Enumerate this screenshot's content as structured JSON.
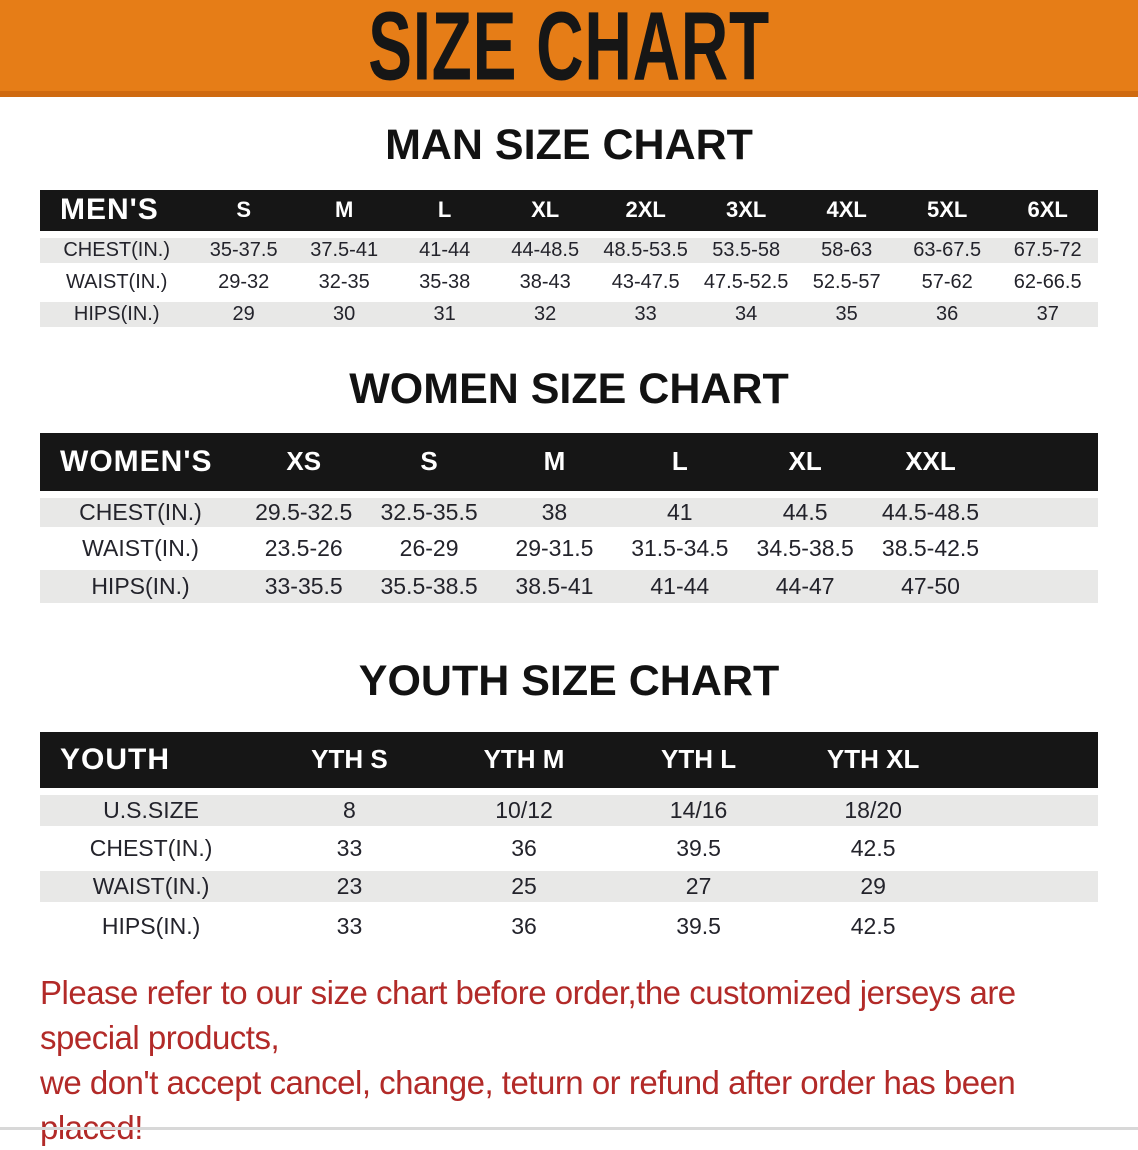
{
  "banner": {
    "title": "SIZE CHART"
  },
  "sections": [
    {
      "id": "men",
      "title": "MAN SIZE CHART",
      "header_label": "MEN'S",
      "columns": [
        "S",
        "M",
        "L",
        "XL",
        "2XL",
        "3XL",
        "4XL",
        "5XL",
        "6XL"
      ],
      "rows": [
        {
          "label": "CHEST(IN.)",
          "values": [
            "35-37.5",
            "37.5-41",
            "41-44",
            "44-48.5",
            "48.5-53.5",
            "53.5-58",
            "58-63",
            "63-67.5",
            "67.5-72"
          ]
        },
        {
          "label": "WAIST(IN.)",
          "values": [
            "29-32",
            "32-35",
            "35-38",
            "38-43",
            "43-47.5",
            "47.5-52.5",
            "52.5-57",
            "57-62",
            "62-66.5"
          ]
        },
        {
          "label": "HIPS(IN.)",
          "values": [
            "29",
            "30",
            "31",
            "32",
            "33",
            "34",
            "35",
            "36",
            "37"
          ]
        }
      ]
    },
    {
      "id": "women",
      "title": "WOMEN SIZE CHART",
      "header_label": "WOMEN'S",
      "columns": [
        "XS",
        "S",
        "M",
        "L",
        "XL",
        "XXL"
      ],
      "rows": [
        {
          "label": "CHEST(IN.)",
          "values": [
            "29.5-32.5",
            "32.5-35.5",
            "38",
            "41",
            "44.5",
            "44.5-48.5"
          ]
        },
        {
          "label": "WAIST(IN.)",
          "values": [
            "23.5-26",
            "26-29",
            "29-31.5",
            "31.5-34.5",
            "34.5-38.5",
            "38.5-42.5"
          ]
        },
        {
          "label": "HIPS(IN.)",
          "values": [
            "33-35.5",
            "35.5-38.5",
            "38.5-41",
            "41-44",
            "44-47",
            "47-50"
          ]
        }
      ]
    },
    {
      "id": "youth",
      "title": "YOUTH SIZE CHART",
      "header_label": "YOUTH",
      "columns": [
        "YTH S",
        "YTH M",
        "YTH L",
        "YTH XL"
      ],
      "rows": [
        {
          "label": "U.S.SIZE",
          "values": [
            "8",
            "10/12",
            "14/16",
            "18/20"
          ]
        },
        {
          "label": "CHEST(IN.)",
          "values": [
            "33",
            "36",
            "39.5",
            "42.5"
          ]
        },
        {
          "label": "WAIST(IN.)",
          "values": [
            "23",
            "25",
            "27",
            "29"
          ]
        },
        {
          "label": "HIPS(IN.)",
          "values": [
            "33",
            "36",
            "39.5",
            "42.5"
          ]
        }
      ]
    }
  ],
  "footer_note": {
    "lines": [
      "Please refer to our size chart before order,the customized jerseys are special products,",
      "we don't accept cancel, change, teturn or refund after order has been placed!"
    ]
  },
  "colors": {
    "banner_orange": "#e67d17",
    "banner_edge": "#cf6a10",
    "header_bar_black": "#161616",
    "row_gray": "#e8e8e7",
    "note_red": "#b22a28"
  }
}
